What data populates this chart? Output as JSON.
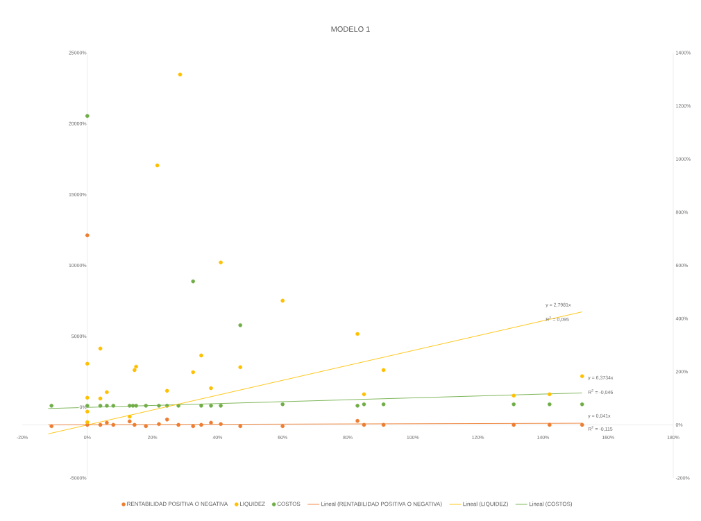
{
  "chart_data": {
    "type": "scatter",
    "title": "MODELO 1",
    "xlim": [
      -20,
      180
    ],
    "xticks": [
      {
        "value": -20,
        "label": "-20%"
      },
      {
        "value": 0,
        "label": "0%"
      },
      {
        "value": 20,
        "label": "20%"
      },
      {
        "value": 40,
        "label": "40%"
      },
      {
        "value": 60,
        "label": "60%"
      },
      {
        "value": 80,
        "label": "80%"
      },
      {
        "value": 100,
        "label": "100%"
      },
      {
        "value": 120,
        "label": "120%"
      },
      {
        "value": 140,
        "label": "140%"
      },
      {
        "value": 160,
        "label": "160%"
      },
      {
        "value": 180,
        "label": "180%"
      }
    ],
    "ylim": [
      -5000,
      25000
    ],
    "yticks": [
      {
        "value": -5000,
        "label": "-5000%"
      },
      {
        "value": 0,
        "label": "0%"
      },
      {
        "value": 5000,
        "label": "5000%"
      },
      {
        "value": 10000,
        "label": "10000%"
      },
      {
        "value": 15000,
        "label": "15000%"
      },
      {
        "value": 20000,
        "label": "20000%"
      },
      {
        "value": 25000,
        "label": "25000%"
      }
    ],
    "y2lim": [
      -200,
      1400
    ],
    "y2ticks": [
      {
        "value": -200,
        "label": "-200%"
      },
      {
        "value": 0,
        "label": "0%"
      },
      {
        "value": 200,
        "label": "200%"
      },
      {
        "value": 400,
        "label": "400%"
      },
      {
        "value": 600,
        "label": "600%"
      },
      {
        "value": 800,
        "label": "800%"
      },
      {
        "value": 1000,
        "label": "1000%"
      },
      {
        "value": 1200,
        "label": "1200%"
      },
      {
        "value": 1400,
        "label": "1400%"
      }
    ],
    "series": [
      {
        "name": "RENTABILIDAD POSITIVA O NEGATIVA",
        "axis": "y2",
        "color": "#ed7d31",
        "x": [
          -11,
          0,
          0,
          4,
          6,
          8,
          13,
          14.5,
          18,
          22,
          24.5,
          28,
          32.5,
          35,
          38,
          41,
          47,
          60,
          83,
          85,
          91,
          131,
          142,
          152
        ],
        "values": [
          -5,
          713,
          0,
          0,
          8,
          0,
          13,
          0,
          -5,
          3,
          20,
          0,
          -5,
          0,
          8,
          3,
          -5,
          -5,
          15,
          0,
          0,
          0,
          0,
          0
        ]
      },
      {
        "name": "LIQUIDEZ",
        "axis": "y2",
        "color": "#ffc000",
        "x": [
          0,
          0,
          0,
          0,
          4,
          4,
          6,
          13,
          14.5,
          15,
          21.5,
          24.5,
          28.5,
          32.5,
          35,
          38,
          41,
          47,
          60,
          83,
          85,
          91,
          131,
          142,
          152
        ],
        "values": [
          230,
          102,
          50,
          10,
          287,
          99,
          123,
          31,
          206,
          219,
          976,
          128,
          1318,
          198,
          261,
          138,
          611,
          217,
          467,
          342,
          115,
          206,
          110,
          115,
          183
        ]
      },
      {
        "name": "COSTOS",
        "axis": "y",
        "color": "#70ad47",
        "x": [
          -11,
          0,
          0,
          4,
          6,
          8,
          13,
          14,
          15,
          18,
          22,
          24.5,
          28,
          32.5,
          35,
          38,
          41,
          47,
          60,
          83,
          85,
          91,
          131,
          142,
          152
        ],
        "values": [
          100,
          20540,
          100,
          100,
          100,
          100,
          100,
          100,
          100,
          100,
          100,
          100,
          100,
          8870,
          100,
          100,
          100,
          5780,
          200,
          100,
          200,
          200,
          200,
          200,
          200
        ]
      },
      {
        "name": "Lineal (RENTABILIDAD POSITIVA O NEGATIVA)",
        "type": "line",
        "marker": "none",
        "axis": "y2",
        "color": "#ed7d31",
        "x": [
          -12,
          152
        ],
        "values": [
          0,
          6
        ]
      },
      {
        "name": "Lineal (LIQUIDEZ)",
        "type": "line",
        "marker": "none",
        "axis": "y2",
        "color": "#ffc000",
        "x": [
          -12,
          152
        ],
        "values": [
          -34,
          425
        ]
      },
      {
        "name": "Lineal (COSTOS)",
        "type": "line",
        "marker": "none",
        "axis": "y",
        "color": "#70ad47",
        "x": [
          -12,
          152
        ],
        "values": [
          -100,
          1000
        ]
      }
    ],
    "annotations": [
      "y = 2,7981x",
      "R$^{2}$ = 0,095",
      "y = 6,3734x",
      "R$^{2}$ = -0,046",
      "y = 0,041x",
      "R$^{2}$ = -0,115"
    ],
    "legend": "bottom",
    "marker": "circle",
    "grid": false
  }
}
